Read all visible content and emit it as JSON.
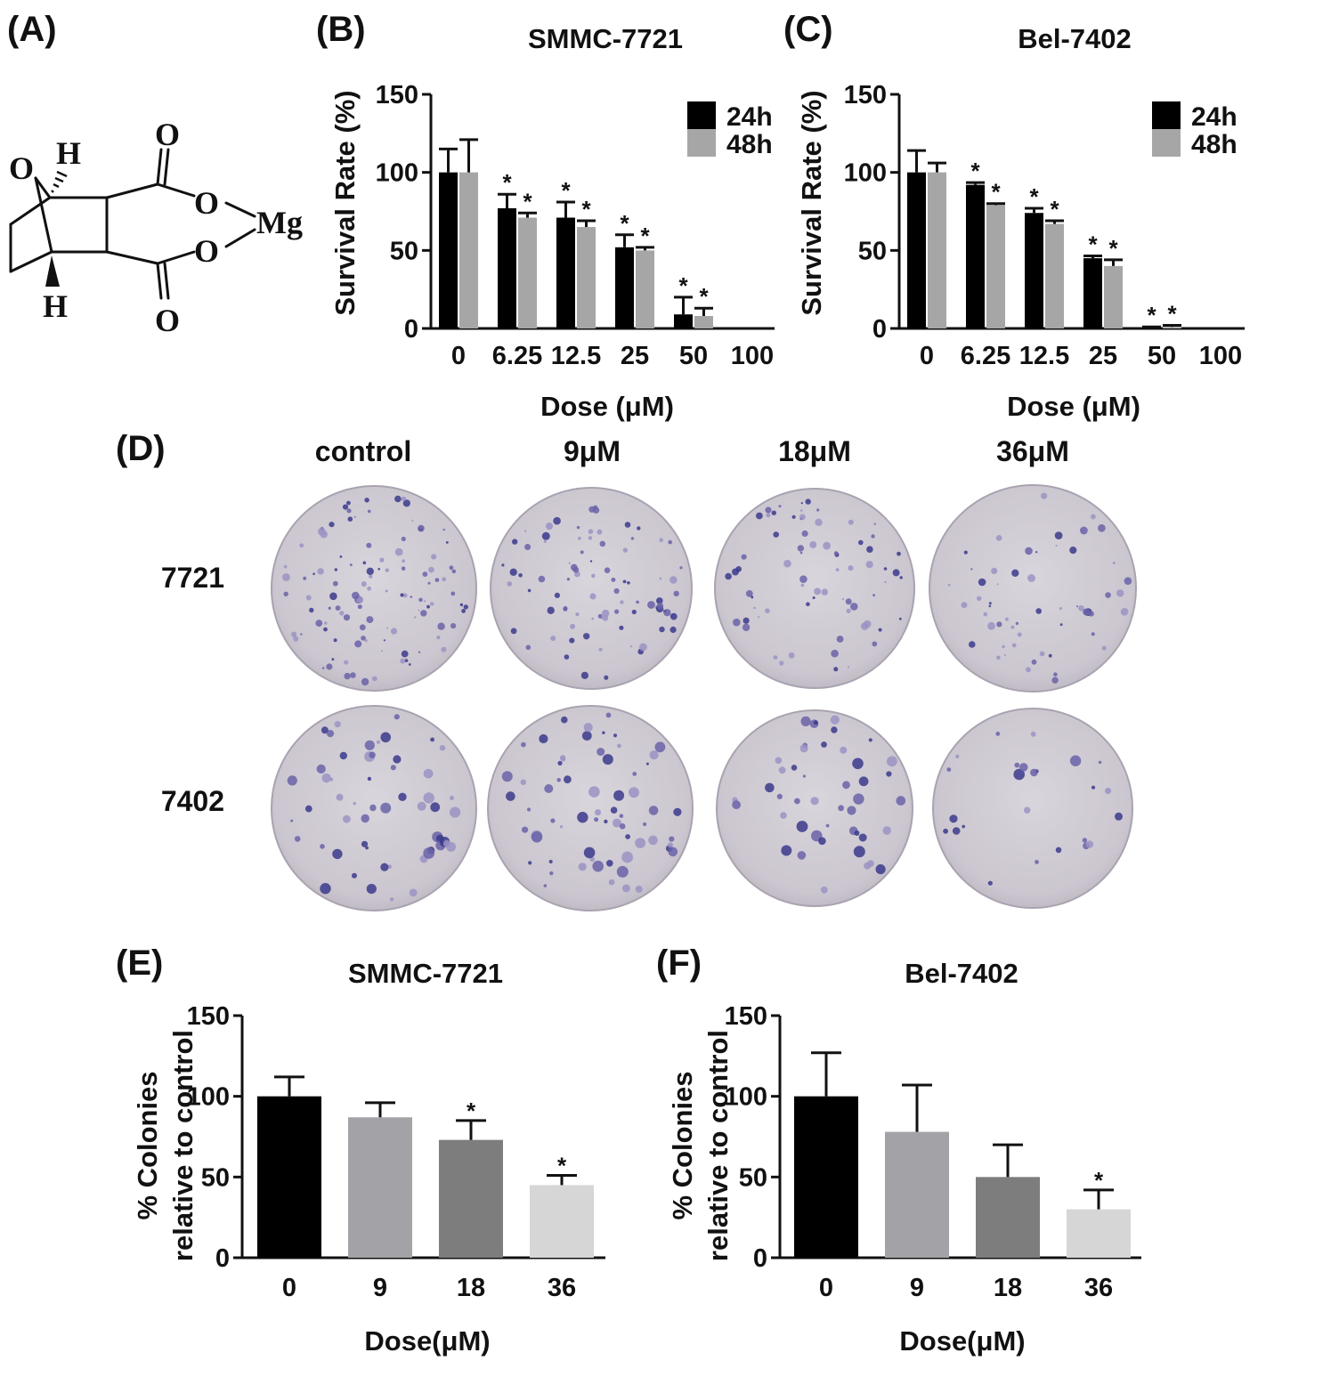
{
  "panel_letters": {
    "a": "(A)",
    "b": "(B)",
    "c": "(C)",
    "d": "(D)",
    "e": "(E)",
    "f": "(F)"
  },
  "structure": {
    "atoms": {
      "o_bridge": "O",
      "h_top": "H",
      "h_bottom": "H",
      "o_carbonyl_top": "O",
      "o_ester_top": "O",
      "mg": "Mg",
      "o_ester_bottom": "O",
      "o_carbonyl_bottom": "O"
    }
  },
  "plates": {
    "columns": [
      "control",
      "9μM",
      "18μM",
      "36μM"
    ],
    "rows": [
      "7721",
      "7402"
    ]
  },
  "chart_data": [
    {
      "id": "B",
      "type": "bar",
      "title": "SMMC-7721",
      "xlabel": "Dose (μM)",
      "ylabel": "Survival Rate (%)",
      "ylim": [
        0,
        150
      ],
      "yticks": [
        0,
        50,
        100,
        150
      ],
      "categories": [
        "0",
        "6.25",
        "12.5",
        "25",
        "50",
        "100"
      ],
      "legend_position": "top-right",
      "series": [
        {
          "name": "24h",
          "color": "#000000",
          "values": [
            100,
            77,
            71,
            52,
            9,
            0
          ],
          "errors": [
            15,
            9,
            10,
            8,
            11,
            0
          ],
          "significant": [
            false,
            true,
            true,
            true,
            true,
            false
          ]
        },
        {
          "name": "48h",
          "color": "#a6a6a6",
          "values": [
            100,
            71,
            65,
            50,
            8,
            0
          ],
          "errors": [
            21,
            3,
            4,
            2,
            5,
            0
          ],
          "significant": [
            false,
            true,
            true,
            true,
            true,
            false
          ]
        }
      ],
      "significance_mark": "*"
    },
    {
      "id": "C",
      "type": "bar",
      "title": "Bel-7402",
      "xlabel": "Dose (μM)",
      "ylabel": "Survival Rate (%)",
      "ylim": [
        0,
        150
      ],
      "yticks": [
        0,
        50,
        100,
        150
      ],
      "categories": [
        "0",
        "6.25",
        "12.5",
        "25",
        "50",
        "100"
      ],
      "legend_position": "top-right",
      "series": [
        {
          "name": "24h",
          "color": "#000000",
          "values": [
            100,
            92,
            74,
            45,
            0.5,
            0
          ],
          "errors": [
            14,
            1.5,
            3,
            1.5,
            0.5,
            0
          ],
          "significant": [
            false,
            true,
            true,
            true,
            true,
            false
          ]
        },
        {
          "name": "48h",
          "color": "#a6a6a6",
          "values": [
            100,
            79,
            67,
            40,
            1,
            0
          ],
          "errors": [
            6,
            1,
            2,
            4,
            1,
            0
          ],
          "significant": [
            false,
            true,
            true,
            true,
            true,
            false
          ]
        }
      ],
      "significance_mark": "*"
    },
    {
      "id": "E",
      "type": "bar",
      "title": "SMMC-7721",
      "xlabel": "Dose(μM)",
      "ylabel_lines": [
        "% Colonies",
        "relative to control"
      ],
      "ylim": [
        0,
        150
      ],
      "yticks": [
        0,
        50,
        100,
        150
      ],
      "categories": [
        "0",
        "9",
        "18",
        "36"
      ],
      "values": [
        100,
        87,
        73,
        45
      ],
      "errors": [
        12,
        9,
        12,
        6
      ],
      "colors": [
        "#000000",
        "#a3a3a7",
        "#7d7d7d",
        "#d6d6d6"
      ],
      "significant": [
        false,
        false,
        true,
        true
      ],
      "significance_mark": "*"
    },
    {
      "id": "F",
      "type": "bar",
      "title": "Bel-7402",
      "xlabel": "Dose(μM)",
      "ylabel_lines": [
        "% Colonies",
        "relative to control"
      ],
      "ylim": [
        0,
        150
      ],
      "yticks": [
        0,
        50,
        100,
        150
      ],
      "categories": [
        "0",
        "9",
        "18",
        "36"
      ],
      "values": [
        100,
        78,
        50,
        30
      ],
      "errors": [
        27,
        29,
        20,
        12
      ],
      "colors": [
        "#000000",
        "#a3a3a7",
        "#7d7d7d",
        "#d6d6d6"
      ],
      "significant": [
        false,
        false,
        false,
        true
      ],
      "significance_mark": "*"
    }
  ]
}
